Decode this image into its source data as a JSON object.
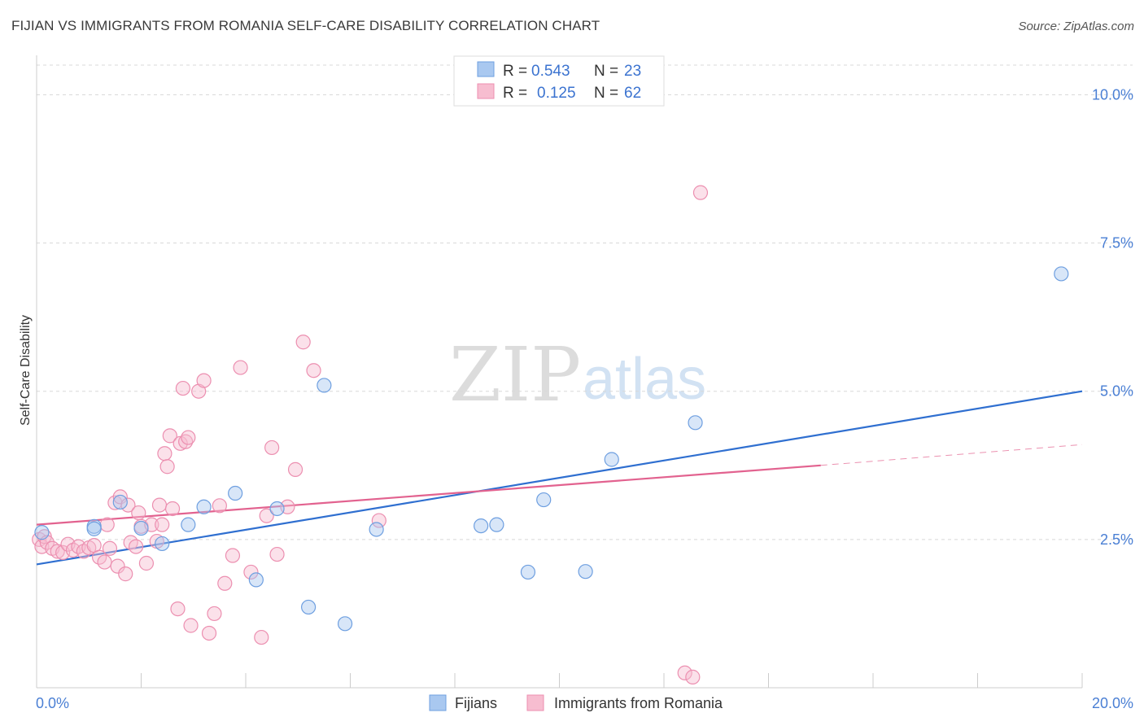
{
  "title": "FIJIAN VS IMMIGRANTS FROM ROMANIA SELF-CARE DISABILITY CORRELATION CHART",
  "source": "Source: ZipAtlas.com",
  "watermark": {
    "zip": "ZIP",
    "atlas": "atlas"
  },
  "colors": {
    "fijian_fill": "#a9c8f0",
    "fijian_stroke": "#6e9fe0",
    "fijian_line": "#2f6fd0",
    "romania_fill": "#f7bdd0",
    "romania_stroke": "#ec8fb0",
    "romania_line": "#e2628f",
    "tick_text": "#4a7fd4",
    "grid": "#d8d8d8"
  },
  "legend_top": {
    "rows": [
      {
        "r_label": "R = ",
        "r_value": "0.543",
        "n_label": "N = ",
        "n_value": "23"
      },
      {
        "r_label": "R = ",
        "r_value": "0.125",
        "n_label": "N = ",
        "n_value": "62"
      }
    ]
  },
  "legend_bottom": {
    "items": [
      "Fijians",
      "Immigrants from Romania"
    ]
  },
  "chart_data": {
    "type": "scatter",
    "title": "FIJIAN VS IMMIGRANTS FROM ROMANIA SELF-CARE DISABILITY CORRELATION CHART",
    "ylabel": "Self-Care Disability",
    "xlabel": "",
    "xlim": [
      0,
      20
    ],
    "ylim": [
      0,
      10.5
    ],
    "x_tick_labels": [
      "0.0%",
      "20.0%"
    ],
    "y_ticks": [
      2.5,
      5.0,
      7.5,
      10.0
    ],
    "y_tick_labels": [
      "2.5%",
      "5.0%",
      "7.5%",
      "10.0%"
    ],
    "grid": true,
    "series": [
      {
        "name": "Fijians",
        "R": 0.543,
        "N": 23,
        "points": [
          [
            0.1,
            2.62
          ],
          [
            1.1,
            2.72
          ],
          [
            1.1,
            2.68
          ],
          [
            1.6,
            3.13
          ],
          [
            2.0,
            2.69
          ],
          [
            2.4,
            2.43
          ],
          [
            2.9,
            2.75
          ],
          [
            3.2,
            3.05
          ],
          [
            3.8,
            3.28
          ],
          [
            4.2,
            1.82
          ],
          [
            4.6,
            3.02
          ],
          [
            5.2,
            1.36
          ],
          [
            5.5,
            5.1
          ],
          [
            5.9,
            1.08
          ],
          [
            6.5,
            2.67
          ],
          [
            8.5,
            2.73
          ],
          [
            8.8,
            2.75
          ],
          [
            9.4,
            1.95
          ],
          [
            9.7,
            3.17
          ],
          [
            10.5,
            1.96
          ],
          [
            11.0,
            3.85
          ],
          [
            12.6,
            4.47
          ],
          [
            19.6,
            6.98
          ]
        ],
        "trend": {
          "x0": 0.0,
          "y0": 2.08,
          "x1": 20.0,
          "y1": 5.0
        }
      },
      {
        "name": "Immigrants from Romania",
        "R": 0.125,
        "N": 62,
        "points": [
          [
            0.05,
            2.5
          ],
          [
            0.1,
            2.38
          ],
          [
            0.15,
            2.55
          ],
          [
            0.2,
            2.45
          ],
          [
            0.3,
            2.35
          ],
          [
            0.4,
            2.3
          ],
          [
            0.5,
            2.28
          ],
          [
            0.6,
            2.42
          ],
          [
            0.7,
            2.32
          ],
          [
            0.8,
            2.38
          ],
          [
            0.9,
            2.3
          ],
          [
            1.0,
            2.36
          ],
          [
            1.1,
            2.4
          ],
          [
            1.2,
            2.2
          ],
          [
            1.3,
            2.12
          ],
          [
            1.35,
            2.75
          ],
          [
            1.4,
            2.35
          ],
          [
            1.5,
            3.12
          ],
          [
            1.55,
            2.05
          ],
          [
            1.6,
            3.22
          ],
          [
            1.7,
            1.92
          ],
          [
            1.75,
            3.08
          ],
          [
            1.8,
            2.45
          ],
          [
            1.9,
            2.38
          ],
          [
            1.95,
            2.95
          ],
          [
            2.0,
            2.72
          ],
          [
            2.1,
            2.1
          ],
          [
            2.2,
            2.75
          ],
          [
            2.3,
            2.47
          ],
          [
            2.35,
            3.08
          ],
          [
            2.4,
            2.75
          ],
          [
            2.45,
            3.95
          ],
          [
            2.5,
            3.73
          ],
          [
            2.55,
            4.25
          ],
          [
            2.6,
            3.02
          ],
          [
            2.7,
            1.33
          ],
          [
            2.75,
            4.12
          ],
          [
            2.8,
            5.05
          ],
          [
            2.85,
            4.15
          ],
          [
            2.9,
            4.22
          ],
          [
            2.95,
            1.05
          ],
          [
            3.1,
            5.0
          ],
          [
            3.2,
            5.18
          ],
          [
            3.3,
            0.92
          ],
          [
            3.4,
            1.25
          ],
          [
            3.5,
            3.07
          ],
          [
            3.6,
            1.76
          ],
          [
            3.75,
            2.23
          ],
          [
            3.9,
            5.4
          ],
          [
            4.1,
            1.95
          ],
          [
            4.3,
            0.85
          ],
          [
            4.4,
            2.9
          ],
          [
            4.5,
            4.05
          ],
          [
            4.6,
            2.25
          ],
          [
            4.8,
            3.05
          ],
          [
            4.95,
            3.68
          ],
          [
            5.1,
            5.83
          ],
          [
            5.3,
            5.35
          ],
          [
            6.55,
            2.82
          ],
          [
            12.4,
            0.25
          ],
          [
            12.55,
            0.18
          ],
          [
            12.7,
            8.35
          ]
        ],
        "trend": {
          "x0": 0.0,
          "y0": 2.75,
          "x1": 15.0,
          "y1": 3.75
        },
        "trend_dashed": {
          "x0": 15.0,
          "y0": 3.75,
          "x1": 20.0,
          "y1": 4.1
        }
      }
    ]
  }
}
